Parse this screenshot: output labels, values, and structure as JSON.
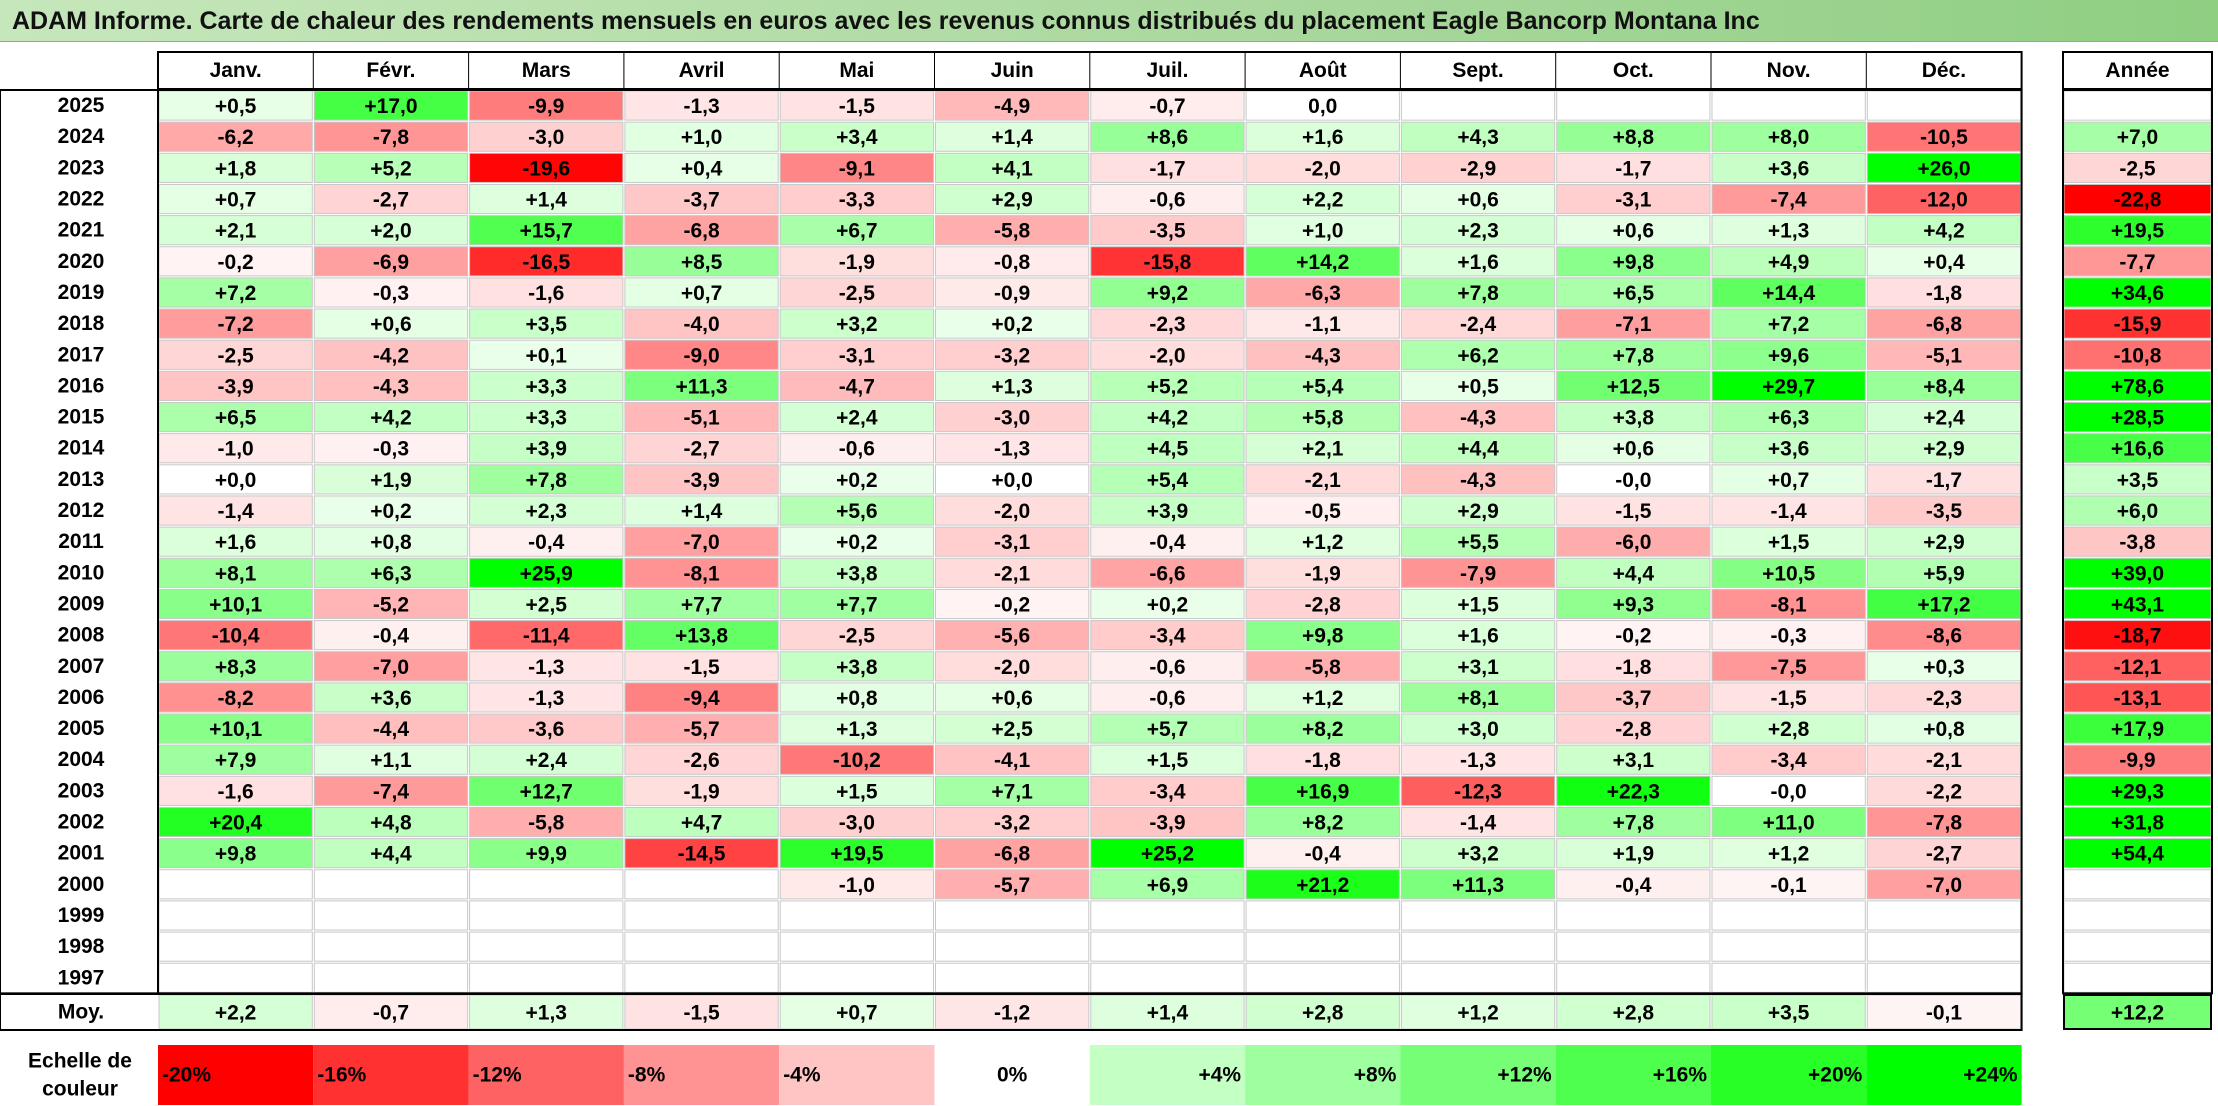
{
  "title": "ADAM Informe. Carte de chaleur des rendements mensuels en euros avec les revenus connus distribués du placement Eagle Bancorp Montana Inc",
  "chart_data": {
    "type": "heatmap",
    "columns": [
      "Janv.",
      "Févr.",
      "Mars",
      "Avril",
      "Mai",
      "Juin",
      "Juil.",
      "Août",
      "Sept.",
      "Oct.",
      "Nov.",
      "Déc."
    ],
    "year_column_label": "Année",
    "rows": [
      {
        "year": "2025",
        "values": [
          "+0,5",
          "+17,0",
          "-9,9",
          "-1,3",
          "-1,5",
          "-4,9",
          "-0,7",
          "0,0",
          "",
          "",
          "",
          ""
        ],
        "annual": ""
      },
      {
        "year": "2024",
        "values": [
          "-6,2",
          "-7,8",
          "-3,0",
          "+1,0",
          "+3,4",
          "+1,4",
          "+8,6",
          "+1,6",
          "+4,3",
          "+8,8",
          "+8,0",
          "-10,5"
        ],
        "annual": "+7,0"
      },
      {
        "year": "2023",
        "values": [
          "+1,8",
          "+5,2",
          "-19,6",
          "+0,4",
          "-9,1",
          "+4,1",
          "-1,7",
          "-2,0",
          "-2,9",
          "-1,7",
          "+3,6",
          "+26,0"
        ],
        "annual": "-2,5"
      },
      {
        "year": "2022",
        "values": [
          "+0,7",
          "-2,7",
          "+1,4",
          "-3,7",
          "-3,3",
          "+2,9",
          "-0,6",
          "+2,2",
          "+0,6",
          "-3,1",
          "-7,4",
          "-12,0"
        ],
        "annual": "-22,8"
      },
      {
        "year": "2021",
        "values": [
          "+2,1",
          "+2,0",
          "+15,7",
          "-6,8",
          "+6,7",
          "-5,8",
          "-3,5",
          "+1,0",
          "+2,3",
          "+0,6",
          "+1,3",
          "+4,2"
        ],
        "annual": "+19,5"
      },
      {
        "year": "2020",
        "values": [
          "-0,2",
          "-6,9",
          "-16,5",
          "+8,5",
          "-1,9",
          "-0,8",
          "-15,8",
          "+14,2",
          "+1,6",
          "+9,8",
          "+4,9",
          "+0,4"
        ],
        "annual": "-7,7"
      },
      {
        "year": "2019",
        "values": [
          "+7,2",
          "-0,3",
          "-1,6",
          "+0,7",
          "-2,5",
          "-0,9",
          "+9,2",
          "-6,3",
          "+7,8",
          "+6,5",
          "+14,4",
          "-1,8"
        ],
        "annual": "+34,6"
      },
      {
        "year": "2018",
        "values": [
          "-7,2",
          "+0,6",
          "+3,5",
          "-4,0",
          "+3,2",
          "+0,2",
          "-2,3",
          "-1,1",
          "-2,4",
          "-7,1",
          "+7,2",
          "-6,8"
        ],
        "annual": "-15,9"
      },
      {
        "year": "2017",
        "values": [
          "-2,5",
          "-4,2",
          "+0,1",
          "-9,0",
          "-3,1",
          "-3,2",
          "-2,0",
          "-4,3",
          "+6,2",
          "+7,8",
          "+9,6",
          "-5,1"
        ],
        "annual": "-10,8"
      },
      {
        "year": "2016",
        "values": [
          "-3,9",
          "-4,3",
          "+3,3",
          "+11,3",
          "-4,7",
          "+1,3",
          "+5,2",
          "+5,4",
          "+0,5",
          "+12,5",
          "+29,7",
          "+8,4"
        ],
        "annual": "+78,6"
      },
      {
        "year": "2015",
        "values": [
          "+6,5",
          "+4,2",
          "+3,3",
          "-5,1",
          "+2,4",
          "-3,0",
          "+4,2",
          "+5,8",
          "-4,3",
          "+3,8",
          "+6,3",
          "+2,4"
        ],
        "annual": "+28,5"
      },
      {
        "year": "2014",
        "values": [
          "-1,0",
          "-0,3",
          "+3,9",
          "-2,7",
          "-0,6",
          "-1,3",
          "+4,5",
          "+2,1",
          "+4,4",
          "+0,6",
          "+3,6",
          "+2,9"
        ],
        "annual": "+16,6"
      },
      {
        "year": "2013",
        "values": [
          "+0,0",
          "+1,9",
          "+7,8",
          "-3,9",
          "+0,2",
          "+0,0",
          "+5,4",
          "-2,1",
          "-4,3",
          "-0,0",
          "+0,7",
          "-1,7"
        ],
        "annual": "+3,5"
      },
      {
        "year": "2012",
        "values": [
          "-1,4",
          "+0,2",
          "+2,3",
          "+1,4",
          "+5,6",
          "-2,0",
          "+3,9",
          "-0,5",
          "+2,9",
          "-1,5",
          "-1,4",
          "-3,5"
        ],
        "annual": "+6,0"
      },
      {
        "year": "2011",
        "values": [
          "+1,6",
          "+0,8",
          "-0,4",
          "-7,0",
          "+0,2",
          "-3,1",
          "-0,4",
          "+1,2",
          "+5,5",
          "-6,0",
          "+1,5",
          "+2,9"
        ],
        "annual": "-3,8"
      },
      {
        "year": "2010",
        "values": [
          "+8,1",
          "+6,3",
          "+25,9",
          "-8,1",
          "+3,8",
          "-2,1",
          "-6,6",
          "-1,9",
          "-7,9",
          "+4,4",
          "+10,5",
          "+5,9"
        ],
        "annual": "+39,0"
      },
      {
        "year": "2009",
        "values": [
          "+10,1",
          "-5,2",
          "+2,5",
          "+7,7",
          "+7,7",
          "-0,2",
          "+0,2",
          "-2,8",
          "+1,5",
          "+9,3",
          "-8,1",
          "+17,2"
        ],
        "annual": "+43,1"
      },
      {
        "year": "2008",
        "values": [
          "-10,4",
          "-0,4",
          "-11,4",
          "+13,8",
          "-2,5",
          "-5,6",
          "-3,4",
          "+9,8",
          "+1,6",
          "-0,2",
          "-0,3",
          "-8,6"
        ],
        "annual": "-18,7"
      },
      {
        "year": "2007",
        "values": [
          "+8,3",
          "-7,0",
          "-1,3",
          "-1,5",
          "+3,8",
          "-2,0",
          "-0,6",
          "-5,8",
          "+3,1",
          "-1,8",
          "-7,5",
          "+0,3"
        ],
        "annual": "-12,1"
      },
      {
        "year": "2006",
        "values": [
          "-8,2",
          "+3,6",
          "-1,3",
          "-9,4",
          "+0,8",
          "+0,6",
          "-0,6",
          "+1,2",
          "+8,1",
          "-3,7",
          "-1,5",
          "-2,3"
        ],
        "annual": "-13,1"
      },
      {
        "year": "2005",
        "values": [
          "+10,1",
          "-4,4",
          "-3,6",
          "-5,7",
          "+1,3",
          "+2,5",
          "+5,7",
          "+8,2",
          "+3,0",
          "-2,8",
          "+2,8",
          "+0,8"
        ],
        "annual": "+17,9"
      },
      {
        "year": "2004",
        "values": [
          "+7,9",
          "+1,1",
          "+2,4",
          "-2,6",
          "-10,2",
          "-4,1",
          "+1,5",
          "-1,8",
          "-1,3",
          "+3,1",
          "-3,4",
          "-2,1"
        ],
        "annual": "-9,9"
      },
      {
        "year": "2003",
        "values": [
          "-1,6",
          "-7,4",
          "+12,7",
          "-1,9",
          "+1,5",
          "+7,1",
          "-3,4",
          "+16,9",
          "-12,3",
          "+22,3",
          "-0,0",
          "-2,2"
        ],
        "annual": "+29,3"
      },
      {
        "year": "2002",
        "values": [
          "+20,4",
          "+4,8",
          "-5,8",
          "+4,7",
          "-3,0",
          "-3,2",
          "-3,9",
          "+8,2",
          "-1,4",
          "+7,8",
          "+11,0",
          "-7,8"
        ],
        "annual": "+31,8"
      },
      {
        "year": "2001",
        "values": [
          "+9,8",
          "+4,4",
          "+9,9",
          "-14,5",
          "+19,5",
          "-6,8",
          "+25,2",
          "-0,4",
          "+3,2",
          "+1,9",
          "+1,2",
          "-2,7"
        ],
        "annual": "+54,4"
      },
      {
        "year": "2000",
        "values": [
          "",
          "",
          "",
          "",
          "-1,0",
          "-5,7",
          "+6,9",
          "+21,2",
          "+11,3",
          "-0,4",
          "-0,1",
          "-7,0"
        ],
        "annual": ""
      },
      {
        "year": "1999",
        "values": [
          "",
          "",
          "",
          "",
          "",
          "",
          "",
          "",
          "",
          "",
          "",
          ""
        ],
        "annual": ""
      },
      {
        "year": "1998",
        "values": [
          "",
          "",
          "",
          "",
          "",
          "",
          "",
          "",
          "",
          "",
          "",
          ""
        ],
        "annual": ""
      },
      {
        "year": "1997",
        "values": [
          "",
          "",
          "",
          "",
          "",
          "",
          "",
          "",
          "",
          "",
          "",
          ""
        ],
        "annual": ""
      }
    ],
    "average_label": "Moy.",
    "averages": [
      "+2,2",
      "-0,7",
      "+1,3",
      "-1,5",
      "+0,7",
      "-1,2",
      "+1,4",
      "+2,8",
      "+1,2",
      "+2,8",
      "+3,5",
      "-0,1"
    ],
    "average_annual": "+12,2",
    "scale_label_line1": "Echelle de",
    "scale_label_line2": "couleur",
    "scale": [
      {
        "label": "-20%",
        "value": -20
      },
      {
        "label": "-16%",
        "value": -16
      },
      {
        "label": "-12%",
        "value": -12
      },
      {
        "label": "-8%",
        "value": -8
      },
      {
        "label": "-4%",
        "value": -4
      },
      {
        "label": "0%",
        "value": 0
      },
      {
        "label": "+4%",
        "value": 4
      },
      {
        "label": "+8%",
        "value": 8
      },
      {
        "label": "+12%",
        "value": 12
      },
      {
        "label": "+16%",
        "value": 16
      },
      {
        "label": "+20%",
        "value": 20
      },
      {
        "label": "+24%",
        "value": 24
      }
    ],
    "colors": {
      "negative": "#ff0000",
      "positive": "#00ff00",
      "neutral": "#ffffff",
      "grid": "#bfbfbf",
      "border": "#000000"
    }
  }
}
